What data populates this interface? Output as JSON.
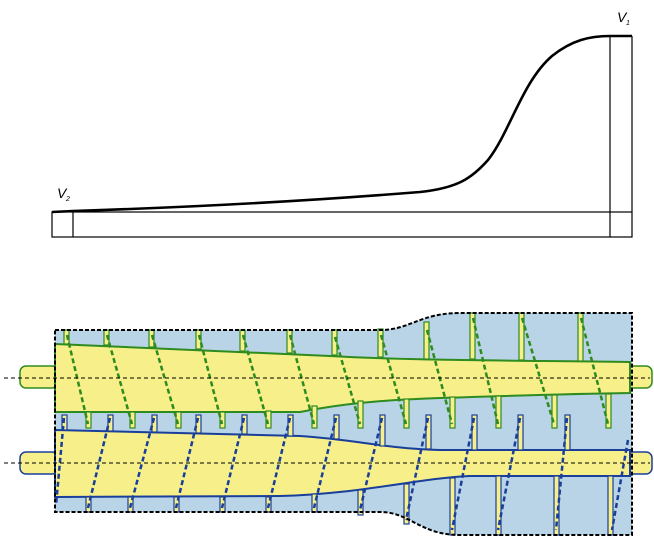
{
  "labels": {
    "v1": {
      "main": "V",
      "sub": "1"
    },
    "v2": {
      "main": "V",
      "sub": "2"
    }
  },
  "colors": {
    "background": "#ffffff",
    "outline": "#000000",
    "barrel_fill": "#b8d4e6",
    "screw_fill": "#f7ef8a",
    "upper_screw": "#2e8b1f",
    "lower_screw": "#1a3f9a",
    "centerline": "#000000"
  }
}
